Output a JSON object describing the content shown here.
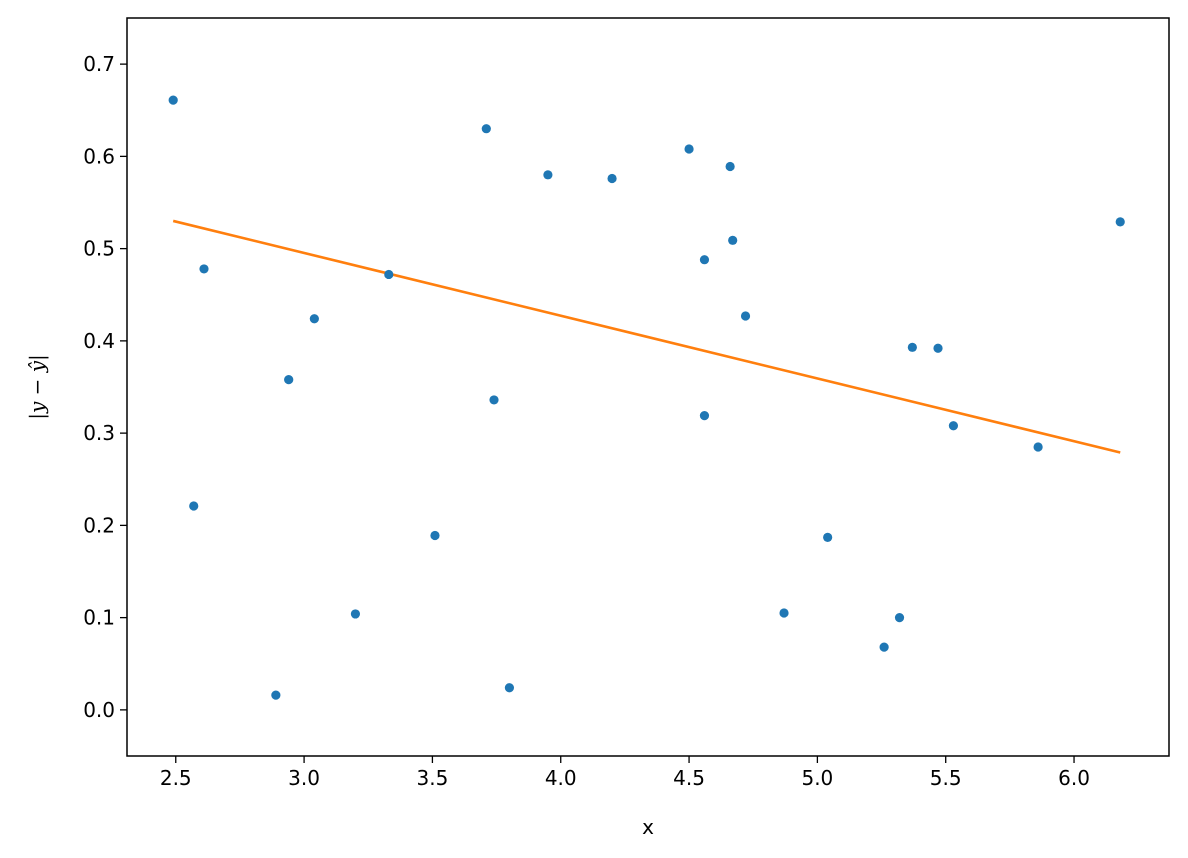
{
  "chart_data": {
    "type": "scatter",
    "title": "",
    "xlabel": "x",
    "ylabel": "|y − ŷ|",
    "xlim": [
      2.31,
      6.37
    ],
    "ylim": [
      -0.05,
      0.75
    ],
    "x_ticks": [
      2.5,
      3.0,
      3.5,
      4.0,
      4.5,
      5.0,
      5.5,
      6.0
    ],
    "x_tick_labels": [
      "2.5",
      "3.0",
      "3.5",
      "4.0",
      "4.5",
      "5.0",
      "5.5",
      "6.0"
    ],
    "y_ticks": [
      0.0,
      0.1,
      0.2,
      0.3,
      0.4,
      0.5,
      0.6,
      0.7
    ],
    "y_tick_labels": [
      "0.0",
      "0.1",
      "0.2",
      "0.3",
      "0.4",
      "0.5",
      "0.6",
      "0.7"
    ],
    "grid": false,
    "legend": "none",
    "colors": {
      "points": "#1f77b4",
      "fit_line": "#ff7f0e"
    },
    "series": [
      {
        "kind": "points",
        "x": [
          2.49,
          2.57,
          2.61,
          2.89,
          2.94,
          3.04,
          3.2,
          3.33,
          3.51,
          3.71,
          3.74,
          3.8,
          3.95,
          4.2,
          4.5,
          4.56,
          4.56,
          4.66,
          4.67,
          4.72,
          4.87,
          5.04,
          5.26,
          5.32,
          5.37,
          5.47,
          5.53,
          5.86,
          6.18
        ],
        "y": [
          0.661,
          0.221,
          0.478,
          0.016,
          0.358,
          0.424,
          0.104,
          0.472,
          0.189,
          0.63,
          0.336,
          0.024,
          0.58,
          0.576,
          0.608,
          0.488,
          0.319,
          0.589,
          0.509,
          0.427,
          0.105,
          0.187,
          0.068,
          0.1,
          0.393,
          0.392,
          0.308,
          0.285,
          0.529
        ]
      },
      {
        "kind": "line",
        "x": [
          2.49,
          6.18
        ],
        "y": [
          0.53,
          0.279
        ]
      }
    ]
  }
}
